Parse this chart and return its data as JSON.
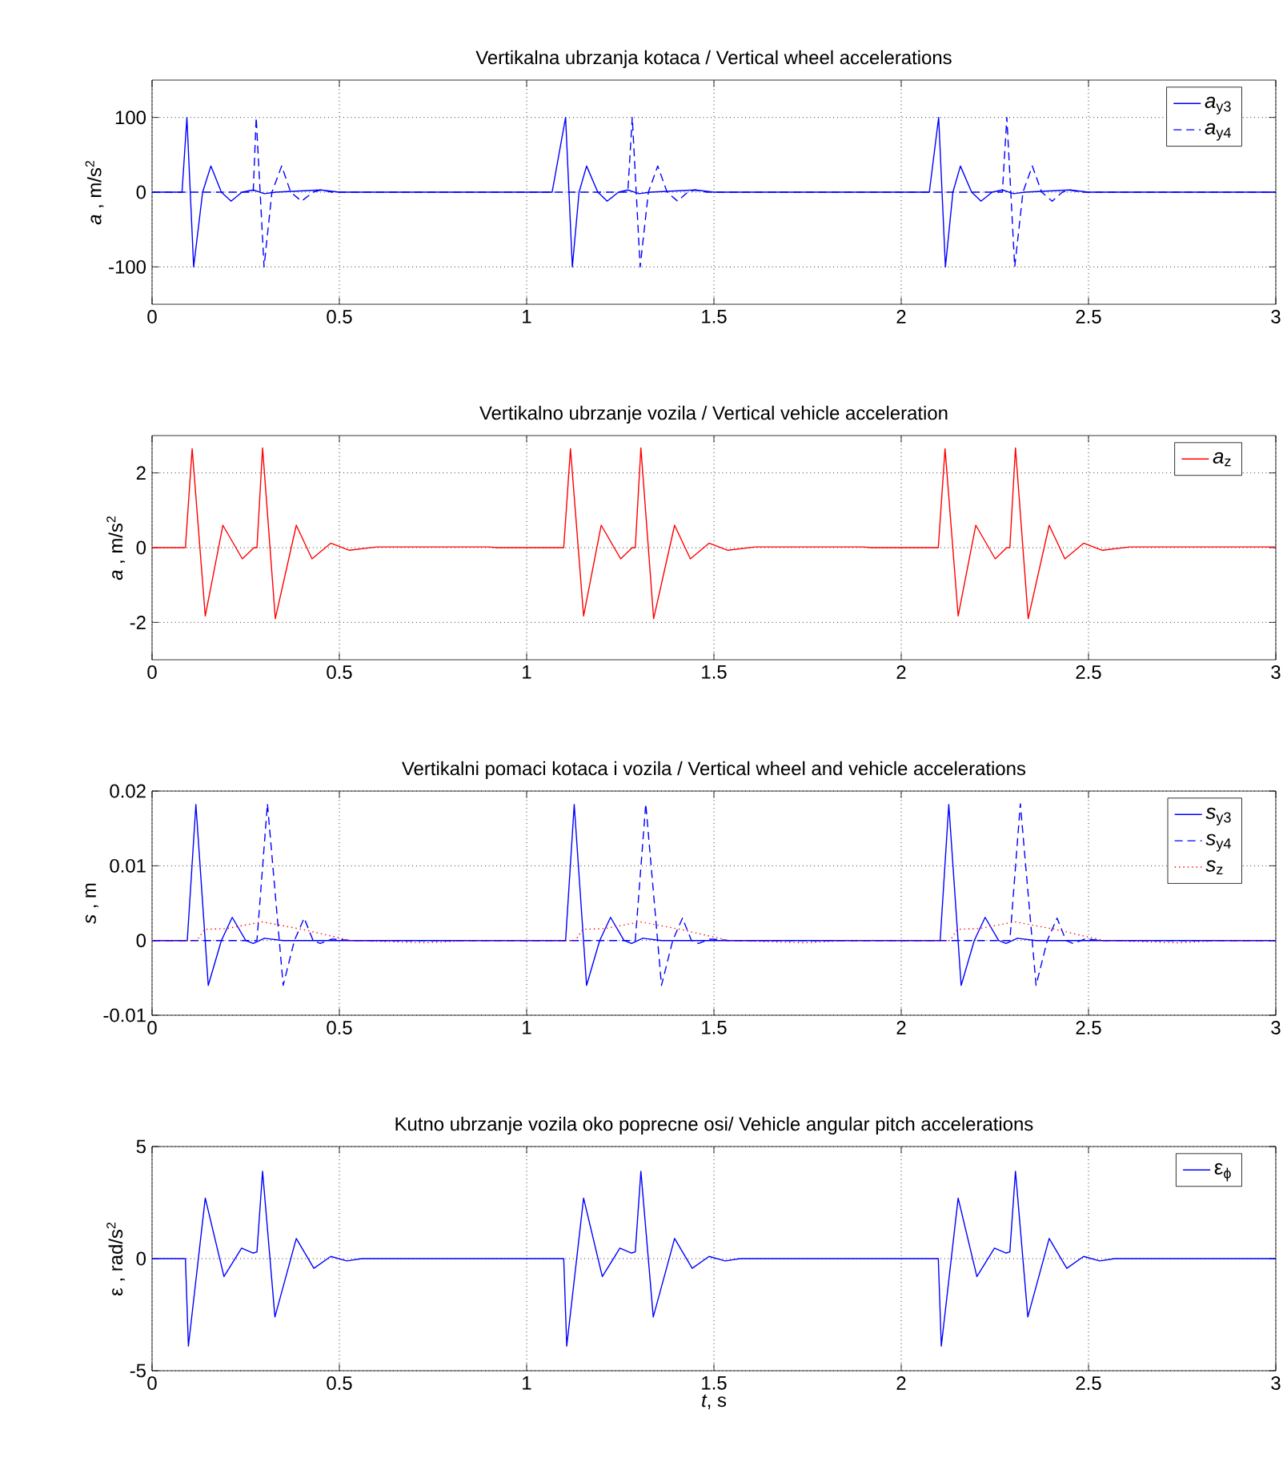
{
  "chart_data": [
    {
      "type": "line",
      "title": "Vertikalna ubrzanja kotaca / Vertical wheel accelerations",
      "ylabel": "*a* , m/s$^{2}$",
      "xlim": [
        0,
        3
      ],
      "ylim": [
        -150,
        150
      ],
      "xticks": [
        0,
        0.5,
        1,
        1.5,
        2,
        2.5,
        3
      ],
      "yticks": [
        -100,
        0,
        100
      ],
      "grid": true,
      "legend": "top right",
      "series": [
        {
          "name": "*a*$_{y3}$",
          "color": "#0000ff",
          "line_style": "solid",
          "x": [
            0,
            0.08,
            0.093,
            0.111,
            0.135,
            0.157,
            0.185,
            0.211,
            0.24,
            0.27,
            0.3,
            0.33,
            0.45,
            0.5,
            1.068,
            1.104,
            1.122,
            1.14,
            1.16,
            1.19,
            1.215,
            1.245,
            1.27,
            1.3,
            1.33,
            1.45,
            1.5,
            2.075,
            2.1,
            2.118,
            2.138,
            2.158,
            2.188,
            2.213,
            2.243,
            2.27,
            2.3,
            2.33,
            2.45,
            2.5,
            3
          ],
          "values": [
            0,
            0,
            100,
            -100,
            0,
            35,
            0,
            -12,
            0,
            3,
            -2,
            0,
            3,
            0,
            0,
            100,
            -100,
            0,
            35,
            0,
            -12,
            0,
            3,
            -2,
            0,
            3,
            0,
            0,
            100,
            -100,
            0,
            35,
            0,
            -12,
            0,
            3,
            -2,
            0,
            3,
            0,
            0
          ]
        },
        {
          "name": "*a*$_{y4}$",
          "color": "#0000ff",
          "line_style": "dashed",
          "x": [
            0,
            0.27,
            0.278,
            0.299,
            0.32,
            0.346,
            0.37,
            0.399,
            0.43,
            0.45,
            0.48,
            1.27,
            1.282,
            1.303,
            1.325,
            1.35,
            1.375,
            1.403,
            1.43,
            1.45,
            1.48,
            2.27,
            2.282,
            2.303,
            2.325,
            2.35,
            2.375,
            2.403,
            2.43,
            2.45,
            2.48,
            3
          ],
          "values": [
            0,
            0,
            100,
            -100,
            0,
            35,
            0,
            -12,
            0,
            3,
            0,
            0,
            100,
            -100,
            0,
            35,
            0,
            -12,
            0,
            3,
            0,
            0,
            100,
            -100,
            0,
            35,
            0,
            -12,
            0,
            3,
            0,
            0
          ]
        }
      ]
    },
    {
      "type": "line",
      "title": "Vertikalno ubrzanje vozila / Vertical vehicle acceleration",
      "ylabel": "*a* , m/s$^{2}$",
      "xlim": [
        0,
        3
      ],
      "ylim": [
        -3,
        3
      ],
      "xticks": [
        0,
        0.5,
        1,
        1.5,
        2,
        2.5,
        3
      ],
      "yticks": [
        -2,
        0,
        2
      ],
      "grid": true,
      "legend": "top right",
      "series": [
        {
          "name": "*a*$_{z}$",
          "color": "#ff0000",
          "line_style": "solid",
          "x": [
            0,
            0.089,
            0.107,
            0.142,
            0.189,
            0.241,
            0.272,
            0.28,
            0.295,
            0.329,
            0.385,
            0.427,
            0.477,
            0.527,
            0.6,
            0.9,
            0.92,
            1.099,
            1.117,
            1.152,
            1.199,
            1.251,
            1.282,
            1.29,
            1.305,
            1.339,
            1.395,
            1.437,
            1.487,
            1.537,
            1.61,
            1.9,
            1.92,
            2.099,
            2.117,
            2.152,
            2.199,
            2.251,
            2.282,
            2.29,
            2.305,
            2.339,
            2.395,
            2.437,
            2.487,
            2.537,
            2.61,
            3
          ],
          "values": [
            0,
            0,
            2.65,
            -1.83,
            0.6,
            -0.3,
            0,
            0,
            2.67,
            -1.9,
            0.6,
            -0.3,
            0.12,
            -0.07,
            0.02,
            0.02,
            0,
            0,
            2.65,
            -1.83,
            0.6,
            -0.3,
            0,
            0,
            2.67,
            -1.9,
            0.6,
            -0.3,
            0.12,
            -0.07,
            0.02,
            0.02,
            0,
            0,
            2.65,
            -1.83,
            0.6,
            -0.3,
            0,
            0,
            2.67,
            -1.9,
            0.6,
            -0.3,
            0.12,
            -0.07,
            0.02,
            0.02
          ]
        }
      ]
    },
    {
      "type": "line",
      "title": "Vertikalni pomaci kotaca i vozila / Vertical wheel and vehicle accelerations",
      "ylabel": "*s* , m",
      "xlim": [
        0,
        3
      ],
      "ylim": [
        -0.01,
        0.02
      ],
      "xticks": [
        0,
        0.5,
        1,
        1.5,
        2,
        2.5,
        3
      ],
      "yticks": [
        -0.01,
        0,
        0.01,
        0.02
      ],
      "grid": true,
      "legend": "top right",
      "series": [
        {
          "name": "*s*$_{y3}$",
          "color": "#0000ff",
          "line_style": "solid",
          "x": [
            0,
            0.094,
            0.117,
            0.15,
            0.185,
            0.214,
            0.25,
            0.27,
            0.3,
            0.35,
            1.104,
            1.127,
            1.16,
            1.195,
            1.224,
            1.26,
            1.28,
            1.31,
            1.36,
            2.104,
            2.127,
            2.16,
            2.195,
            2.224,
            2.26,
            2.28,
            2.31,
            2.36,
            3
          ],
          "values": [
            0,
            0,
            0.0182,
            -0.006,
            0,
            0.0031,
            0,
            -0.0004,
            0.0003,
            0,
            0,
            0.0182,
            -0.006,
            0,
            0.0031,
            0,
            -0.0004,
            0.0003,
            0,
            0,
            0.0182,
            -0.006,
            0,
            0.0031,
            0,
            -0.0004,
            0.0003,
            0,
            0
          ]
        },
        {
          "name": "*s*$_{y4}$",
          "color": "#0000ff",
          "line_style": "dashed",
          "x": [
            0,
            0.28,
            0.308,
            0.35,
            0.38,
            0.406,
            0.43,
            0.449,
            0.48,
            0.53,
            1.29,
            1.318,
            1.36,
            1.39,
            1.416,
            1.44,
            1.459,
            1.49,
            1.54,
            2.29,
            2.318,
            2.36,
            2.39,
            2.416,
            2.44,
            2.459,
            2.49,
            2.54,
            3
          ],
          "values": [
            0,
            0,
            0.0183,
            -0.006,
            0,
            0.003,
            0,
            -0.0004,
            0.0002,
            0,
            0,
            0.0183,
            -0.006,
            0,
            0.003,
            0,
            -0.0004,
            0.0002,
            0,
            0,
            0.0183,
            -0.006,
            0,
            0.003,
            0,
            -0.0004,
            0.0002,
            0,
            0
          ]
        },
        {
          "name": "*s*$_{z}$",
          "color": "#ff0000",
          "line_style": "dotted",
          "x": [
            0,
            0.12,
            0.14,
            0.2,
            0.294,
            0.4,
            0.53,
            0.73,
            0.85,
            1.13,
            1.15,
            1.21,
            1.304,
            1.41,
            1.54,
            1.74,
            1.86,
            2.13,
            2.15,
            2.21,
            2.304,
            2.41,
            2.54,
            2.74,
            2.86,
            3
          ],
          "values": [
            0,
            0,
            0.0015,
            0.0016,
            0.0025,
            0.0015,
            0,
            -0.0003,
            0,
            0,
            0.0015,
            0.0016,
            0.0025,
            0.0015,
            0,
            -0.0003,
            0,
            0,
            0.0015,
            0.0016,
            0.0025,
            0.0015,
            0,
            -0.0003,
            0,
            0
          ]
        }
      ]
    },
    {
      "type": "line",
      "title": "Kutno ubrzanje vozila oko poprecne osi/ Vehicle angular pitch accelerations",
      "xlabel": "*t*, s",
      "ylabel": "ε , rad/s$^{2}$",
      "xlim": [
        0,
        3
      ],
      "ylim": [
        -5,
        5
      ],
      "xticks": [
        0,
        0.5,
        1,
        1.5,
        2,
        2.5,
        3
      ],
      "yticks": [
        -5,
        0,
        5
      ],
      "grid": true,
      "legend": "top right",
      "series": [
        {
          "name": "ε$_{ϕ}$",
          "color": "#0000ff",
          "line_style": "solid",
          "x": [
            0,
            0.089,
            0.097,
            0.142,
            0.192,
            0.239,
            0.27,
            0.28,
            0.295,
            0.328,
            0.385,
            0.432,
            0.477,
            0.52,
            0.56,
            1.099,
            1.107,
            1.152,
            1.202,
            1.249,
            1.28,
            1.29,
            1.305,
            1.338,
            1.395,
            1.442,
            1.487,
            1.53,
            1.57,
            2.099,
            2.107,
            2.152,
            2.202,
            2.249,
            2.28,
            2.29,
            2.305,
            2.338,
            2.395,
            2.442,
            2.487,
            2.53,
            2.57,
            3
          ],
          "values": [
            0,
            0,
            -3.9,
            2.7,
            -0.8,
            0.47,
            0.25,
            0.3,
            3.9,
            -2.6,
            0.9,
            -0.43,
            0.1,
            -0.1,
            0,
            0,
            -3.9,
            2.7,
            -0.8,
            0.47,
            0.25,
            0.3,
            3.9,
            -2.6,
            0.9,
            -0.43,
            0.1,
            -0.1,
            0,
            0,
            -3.9,
            2.7,
            -0.8,
            0.47,
            0.25,
            0.3,
            3.9,
            -2.6,
            0.9,
            -0.43,
            0.1,
            -0.1,
            0,
            0
          ]
        }
      ]
    }
  ]
}
